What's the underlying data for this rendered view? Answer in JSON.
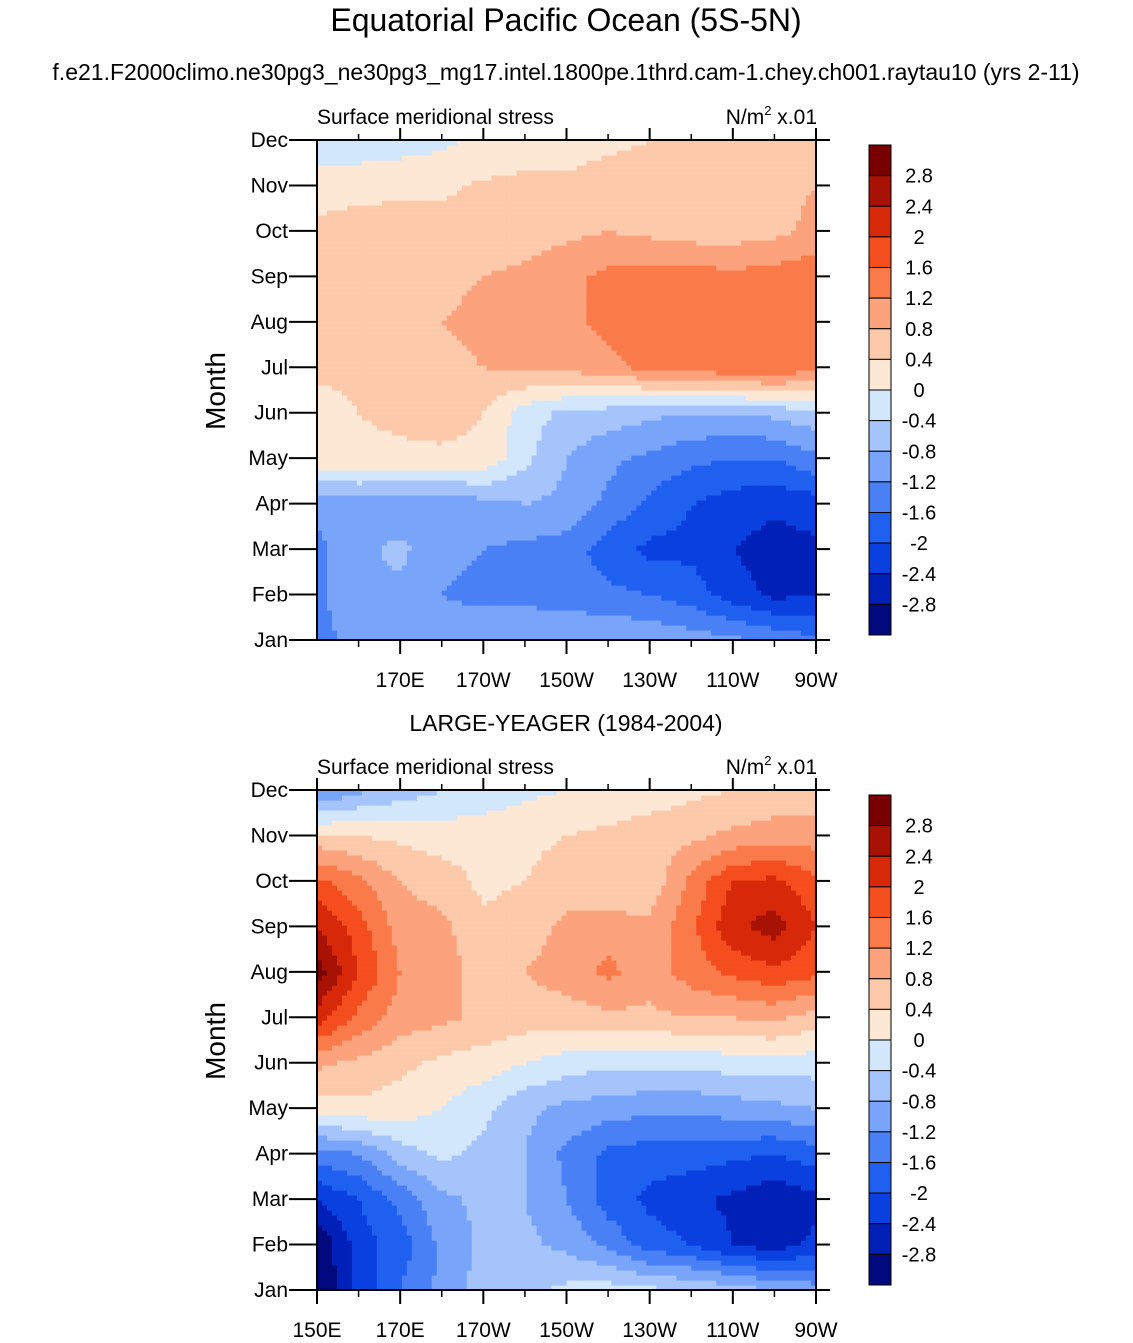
{
  "figure": {
    "title": "Equatorial Pacific Ocean (5S-5N)",
    "subtitle": "f.e21.F2000climo.ne30pg3_ne30pg3_mg17.intel.1800pe.1thrd.cam-1.chey.ch001.raytau10 (yrs 2-11)",
    "palette": [
      "#000a7e",
      "#0020b8",
      "#0a40e0",
      "#2060f0",
      "#4a80f5",
      "#78a4fa",
      "#a6c4fc",
      "#d2e6fc",
      "#fde8d6",
      "#fcc9ab",
      "#fca27c",
      "#fb7a4a",
      "#f44d1e",
      "#d8280a",
      "#a71205",
      "#790000"
    ]
  },
  "chart_data": [
    {
      "type": "heatmap",
      "title": "",
      "left_label": "Surface meridional stress",
      "right_label": "N/m",
      "right_label_sup": "2",
      "right_label_tail": " x.01",
      "ylabel": "Month",
      "xlabel": "",
      "x_ticks": [
        "170E",
        "170W",
        "150W",
        "130W",
        "110W",
        "90W"
      ],
      "y_ticks": [
        "Jan",
        "Feb",
        "Mar",
        "Apr",
        "May",
        "Jun",
        "Jul",
        "Aug",
        "Sep",
        "Oct",
        "Nov",
        "Dec"
      ],
      "xlim": [
        150,
        270
      ],
      "x_tick_values": [
        170,
        190,
        210,
        230,
        250,
        270
      ],
      "colorbar_levels": [
        "-2.8",
        "-2.4",
        "-2",
        "-1.6",
        "-1.2",
        "-0.8",
        "-0.4",
        "0",
        "0.4",
        "0.8",
        "1.2",
        "1.6",
        "2",
        "2.4",
        "2.8"
      ],
      "x": [
        150,
        160,
        170,
        180,
        190,
        200,
        210,
        220,
        230,
        240,
        250,
        260,
        270
      ],
      "months": [
        "Jan",
        "Feb",
        "Mar",
        "Apr",
        "May",
        "Jun",
        "Jul",
        "Aug",
        "Sep",
        "Oct",
        "Nov",
        "Dec"
      ],
      "z": [
        [
          -1.3,
          -1.1,
          -1.0,
          -1.0,
          -0.95,
          -0.9,
          -0.85,
          -0.8,
          -0.9,
          -1.0,
          -1.1,
          -1.3,
          -1.5
        ],
        [
          -1.3,
          -0.9,
          -0.9,
          -1.2,
          -1.3,
          -1.3,
          -1.4,
          -1.5,
          -1.6,
          -1.8,
          -2.2,
          -2.5,
          -2.4
        ],
        [
          -1.3,
          -0.9,
          -0.7,
          -1.1,
          -1.2,
          -1.3,
          -1.4,
          -1.8,
          -2.1,
          -2.1,
          -2.4,
          -2.6,
          -2.5
        ],
        [
          -1.1,
          -1.0,
          -1.1,
          -1.1,
          -0.95,
          -0.8,
          -0.9,
          -1.3,
          -1.7,
          -2.0,
          -2.2,
          -2.3,
          -2.2
        ],
        [
          0.3,
          0.3,
          0.3,
          0.3,
          0.3,
          -0.3,
          -0.8,
          -1.1,
          -1.3,
          -1.5,
          -1.6,
          -1.6,
          -1.3
        ],
        [
          0.2,
          0.4,
          0.5,
          0.6,
          0.4,
          -0.2,
          -0.5,
          -0.6,
          -0.7,
          -0.8,
          -0.8,
          -0.7,
          -0.5
        ],
        [
          0.5,
          0.5,
          0.6,
          0.7,
          0.8,
          0.9,
          0.9,
          1.1,
          1.3,
          1.4,
          1.5,
          1.6,
          1.3
        ],
        [
          0.7,
          0.6,
          0.7,
          0.8,
          0.9,
          1.0,
          1.1,
          1.3,
          1.5,
          1.6,
          1.6,
          1.6,
          1.4
        ],
        [
          0.5,
          0.6,
          0.6,
          0.7,
          0.8,
          0.9,
          1.1,
          1.3,
          1.4,
          1.4,
          1.3,
          1.4,
          1.5
        ],
        [
          0.5,
          0.6,
          0.6,
          0.5,
          0.5,
          0.6,
          0.7,
          0.8,
          0.7,
          0.6,
          0.6,
          0.7,
          0.9
        ],
        [
          0.2,
          0.25,
          0.3,
          0.35,
          0.45,
          0.5,
          0.5,
          0.6,
          0.6,
          0.6,
          0.6,
          0.7,
          0.8
        ],
        [
          -0.3,
          -0.25,
          -0.2,
          -0.1,
          0.1,
          0.2,
          0.2,
          0.3,
          0.4,
          0.4,
          0.4,
          0.5,
          0.6
        ]
      ]
    },
    {
      "type": "heatmap",
      "title": "LARGE-YEAGER (1984-2004)",
      "left_label": "Surface meridional stress",
      "right_label": "N/m",
      "right_label_sup": "2",
      "right_label_tail": " x.01",
      "ylabel": "Month",
      "xlabel": "",
      "x_ticks": [
        "150E",
        "170E",
        "170W",
        "150W",
        "130W",
        "110W",
        "90W"
      ],
      "y_ticks": [
        "Jan",
        "Feb",
        "Mar",
        "Apr",
        "May",
        "Jun",
        "Jul",
        "Aug",
        "Sep",
        "Oct",
        "Nov",
        "Dec"
      ],
      "xlim": [
        150,
        270
      ],
      "x_tick_values": [
        150,
        170,
        190,
        210,
        230,
        250,
        270
      ],
      "colorbar_levels": [
        "-2.8",
        "-2.4",
        "-2",
        "-1.6",
        "-1.2",
        "-0.8",
        "-0.4",
        "0",
        "0.4",
        "0.8",
        "1.2",
        "1.6",
        "2",
        "2.4",
        "2.8"
      ],
      "x": [
        150,
        160,
        170,
        180,
        190,
        200,
        210,
        220,
        230,
        240,
        250,
        260,
        270
      ],
      "months": [
        "Jan",
        "Feb",
        "Mar",
        "Apr",
        "May",
        "Jun",
        "Jul",
        "Aug",
        "Sep",
        "Oct",
        "Nov",
        "Dec"
      ],
      "z": [
        [
          -3.2,
          -2.3,
          -1.6,
          -1.1,
          -0.6,
          -0.5,
          -0.3,
          -0.2,
          -0.3,
          -0.4,
          -0.6,
          -0.8,
          -1.0
        ],
        [
          -3.2,
          -2.2,
          -1.8,
          -1.1,
          -0.7,
          -0.7,
          -0.9,
          -1.3,
          -1.8,
          -2.0,
          -2.4,
          -2.6,
          -2.3
        ],
        [
          -2.4,
          -2.0,
          -1.5,
          -0.9,
          -0.7,
          -0.8,
          -1.2,
          -1.8,
          -2.1,
          -2.3,
          -2.5,
          -2.7,
          -2.5
        ],
        [
          -1.4,
          -1.2,
          -0.6,
          -0.3,
          -0.5,
          -0.8,
          -1.3,
          -1.7,
          -1.8,
          -1.8,
          -1.9,
          -2.0,
          -1.8
        ],
        [
          0.2,
          0.3,
          0.2,
          0.0,
          -0.3,
          -0.7,
          -0.9,
          -1.0,
          -1.1,
          -1.1,
          -1.0,
          -0.9,
          -0.8
        ],
        [
          0.9,
          0.7,
          0.5,
          0.3,
          0.2,
          0.0,
          -0.2,
          -0.3,
          -0.3,
          -0.3,
          -0.2,
          -0.2,
          -0.2
        ],
        [
          2.2,
          1.5,
          1.0,
          0.9,
          0.7,
          0.6,
          0.6,
          0.7,
          0.7,
          0.8,
          0.8,
          0.9,
          0.6
        ],
        [
          3.0,
          2.0,
          1.2,
          1.0,
          0.6,
          0.8,
          1.0,
          1.3,
          1.0,
          1.4,
          1.7,
          1.9,
          1.7
        ],
        [
          2.4,
          1.8,
          1.0,
          0.9,
          0.5,
          0.6,
          0.9,
          1.0,
          0.9,
          1.5,
          2.3,
          2.6,
          2.0
        ],
        [
          1.7,
          1.3,
          0.8,
          0.6,
          0.3,
          0.4,
          0.6,
          0.4,
          0.5,
          1.3,
          2.0,
          2.1,
          1.7
        ],
        [
          0.5,
          0.4,
          0.3,
          0.2,
          0.3,
          0.3,
          0.4,
          0.5,
          0.6,
          0.7,
          0.9,
          1.0,
          1.0
        ],
        [
          -1.3,
          -0.9,
          -0.6,
          -0.4,
          -0.3,
          -0.1,
          0.0,
          0.1,
          0.2,
          0.3,
          0.4,
          0.5,
          0.6
        ]
      ]
    }
  ]
}
